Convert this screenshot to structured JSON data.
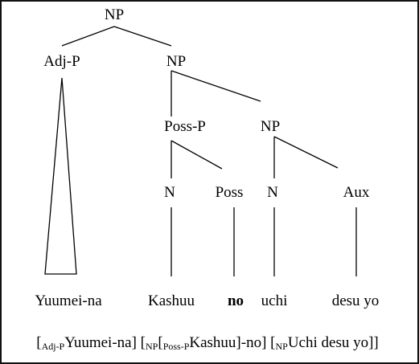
{
  "tree": {
    "np_root": "NP",
    "adj_p": "Adj-P",
    "np_2": "NP",
    "poss_p": "Poss-P",
    "np_3": "NP",
    "n_1": "N",
    "poss": "Poss",
    "n_2": "N",
    "aux": "Aux"
  },
  "words": {
    "w1": "Yuumei-na",
    "w2": "Kashuu",
    "w3": "no",
    "w4": "uchi",
    "w5": "desu yo"
  },
  "bracket": {
    "open1": "[",
    "sub1": "Adj-P",
    "text1": "Yuumei-na] [",
    "sub2": "NP",
    "text2": "[",
    "sub3": "Poss-P",
    "text3": "Kashuu]-no] [",
    "sub4": "NP",
    "text4": "Uchi desu yo]]"
  }
}
